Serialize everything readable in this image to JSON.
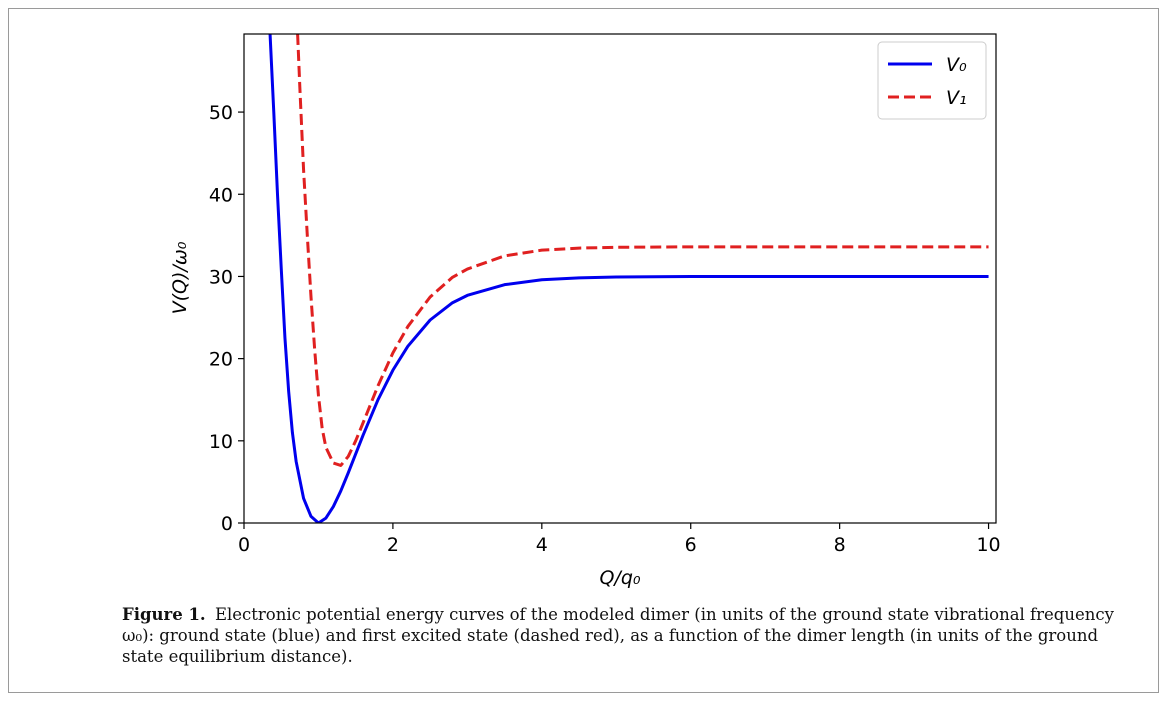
{
  "chart_data": {
    "type": "line",
    "xlabel": "Q/q₀",
    "ylabel": "V(Q)/ω₀",
    "xlim": [
      0,
      10.1
    ],
    "ylim": [
      0,
      59.5
    ],
    "xticks": [
      0,
      2,
      4,
      6,
      8,
      10
    ],
    "yticks": [
      0,
      10,
      20,
      30,
      40,
      50
    ],
    "grid": false,
    "legend_position": "top-right",
    "series": [
      {
        "name": "V₀",
        "color": "#0000ee",
        "dash": "solid",
        "x": [
          0.35,
          0.4,
          0.45,
          0.5,
          0.55,
          0.6,
          0.65,
          0.7,
          0.8,
          0.9,
          1.0,
          1.1,
          1.2,
          1.3,
          1.4,
          1.5,
          1.6,
          1.8,
          2.0,
          2.2,
          2.5,
          2.8,
          3.0,
          3.5,
          4.0,
          4.5,
          5.0,
          6.0,
          7.0,
          8.0,
          9.0,
          10.0
        ],
        "y": [
          59.5,
          50.0,
          40.0,
          31.0,
          22.5,
          16.0,
          11.0,
          7.5,
          3.0,
          0.8,
          0.0,
          0.6,
          2.0,
          3.9,
          6.1,
          8.4,
          10.7,
          15.0,
          18.6,
          21.5,
          24.7,
          26.8,
          27.7,
          29.0,
          29.6,
          29.82,
          29.93,
          29.99,
          30.0,
          30.0,
          30.0,
          30.0
        ]
      },
      {
        "name": "V₁",
        "color": "#e02020",
        "dash": "dashed",
        "x": [
          0.72,
          0.75,
          0.8,
          0.85,
          0.9,
          0.95,
          1.0,
          1.05,
          1.1,
          1.2,
          1.3,
          1.4,
          1.5,
          1.6,
          1.8,
          2.0,
          2.2,
          2.5,
          2.8,
          3.0,
          3.5,
          4.0,
          4.5,
          5.0,
          6.0,
          7.0,
          8.0,
          9.0,
          10.0
        ],
        "y": [
          59.5,
          53.0,
          43.0,
          35.0,
          27.5,
          21.0,
          15.5,
          11.5,
          9.2,
          7.3,
          7.0,
          8.1,
          10.0,
          12.2,
          16.7,
          20.7,
          23.9,
          27.5,
          29.9,
          30.9,
          32.5,
          33.2,
          33.45,
          33.55,
          33.6,
          33.6,
          33.6,
          33.6,
          33.6
        ]
      }
    ]
  },
  "caption": {
    "label": "Figure 1.",
    "text": "Electronic potential energy curves of the modeled dimer (in units of the ground state vibrational frequency ω₀): ground state (blue) and first excited state (dashed red), as a function of the dimer length (in units of the ground state equilibrium distance)."
  }
}
